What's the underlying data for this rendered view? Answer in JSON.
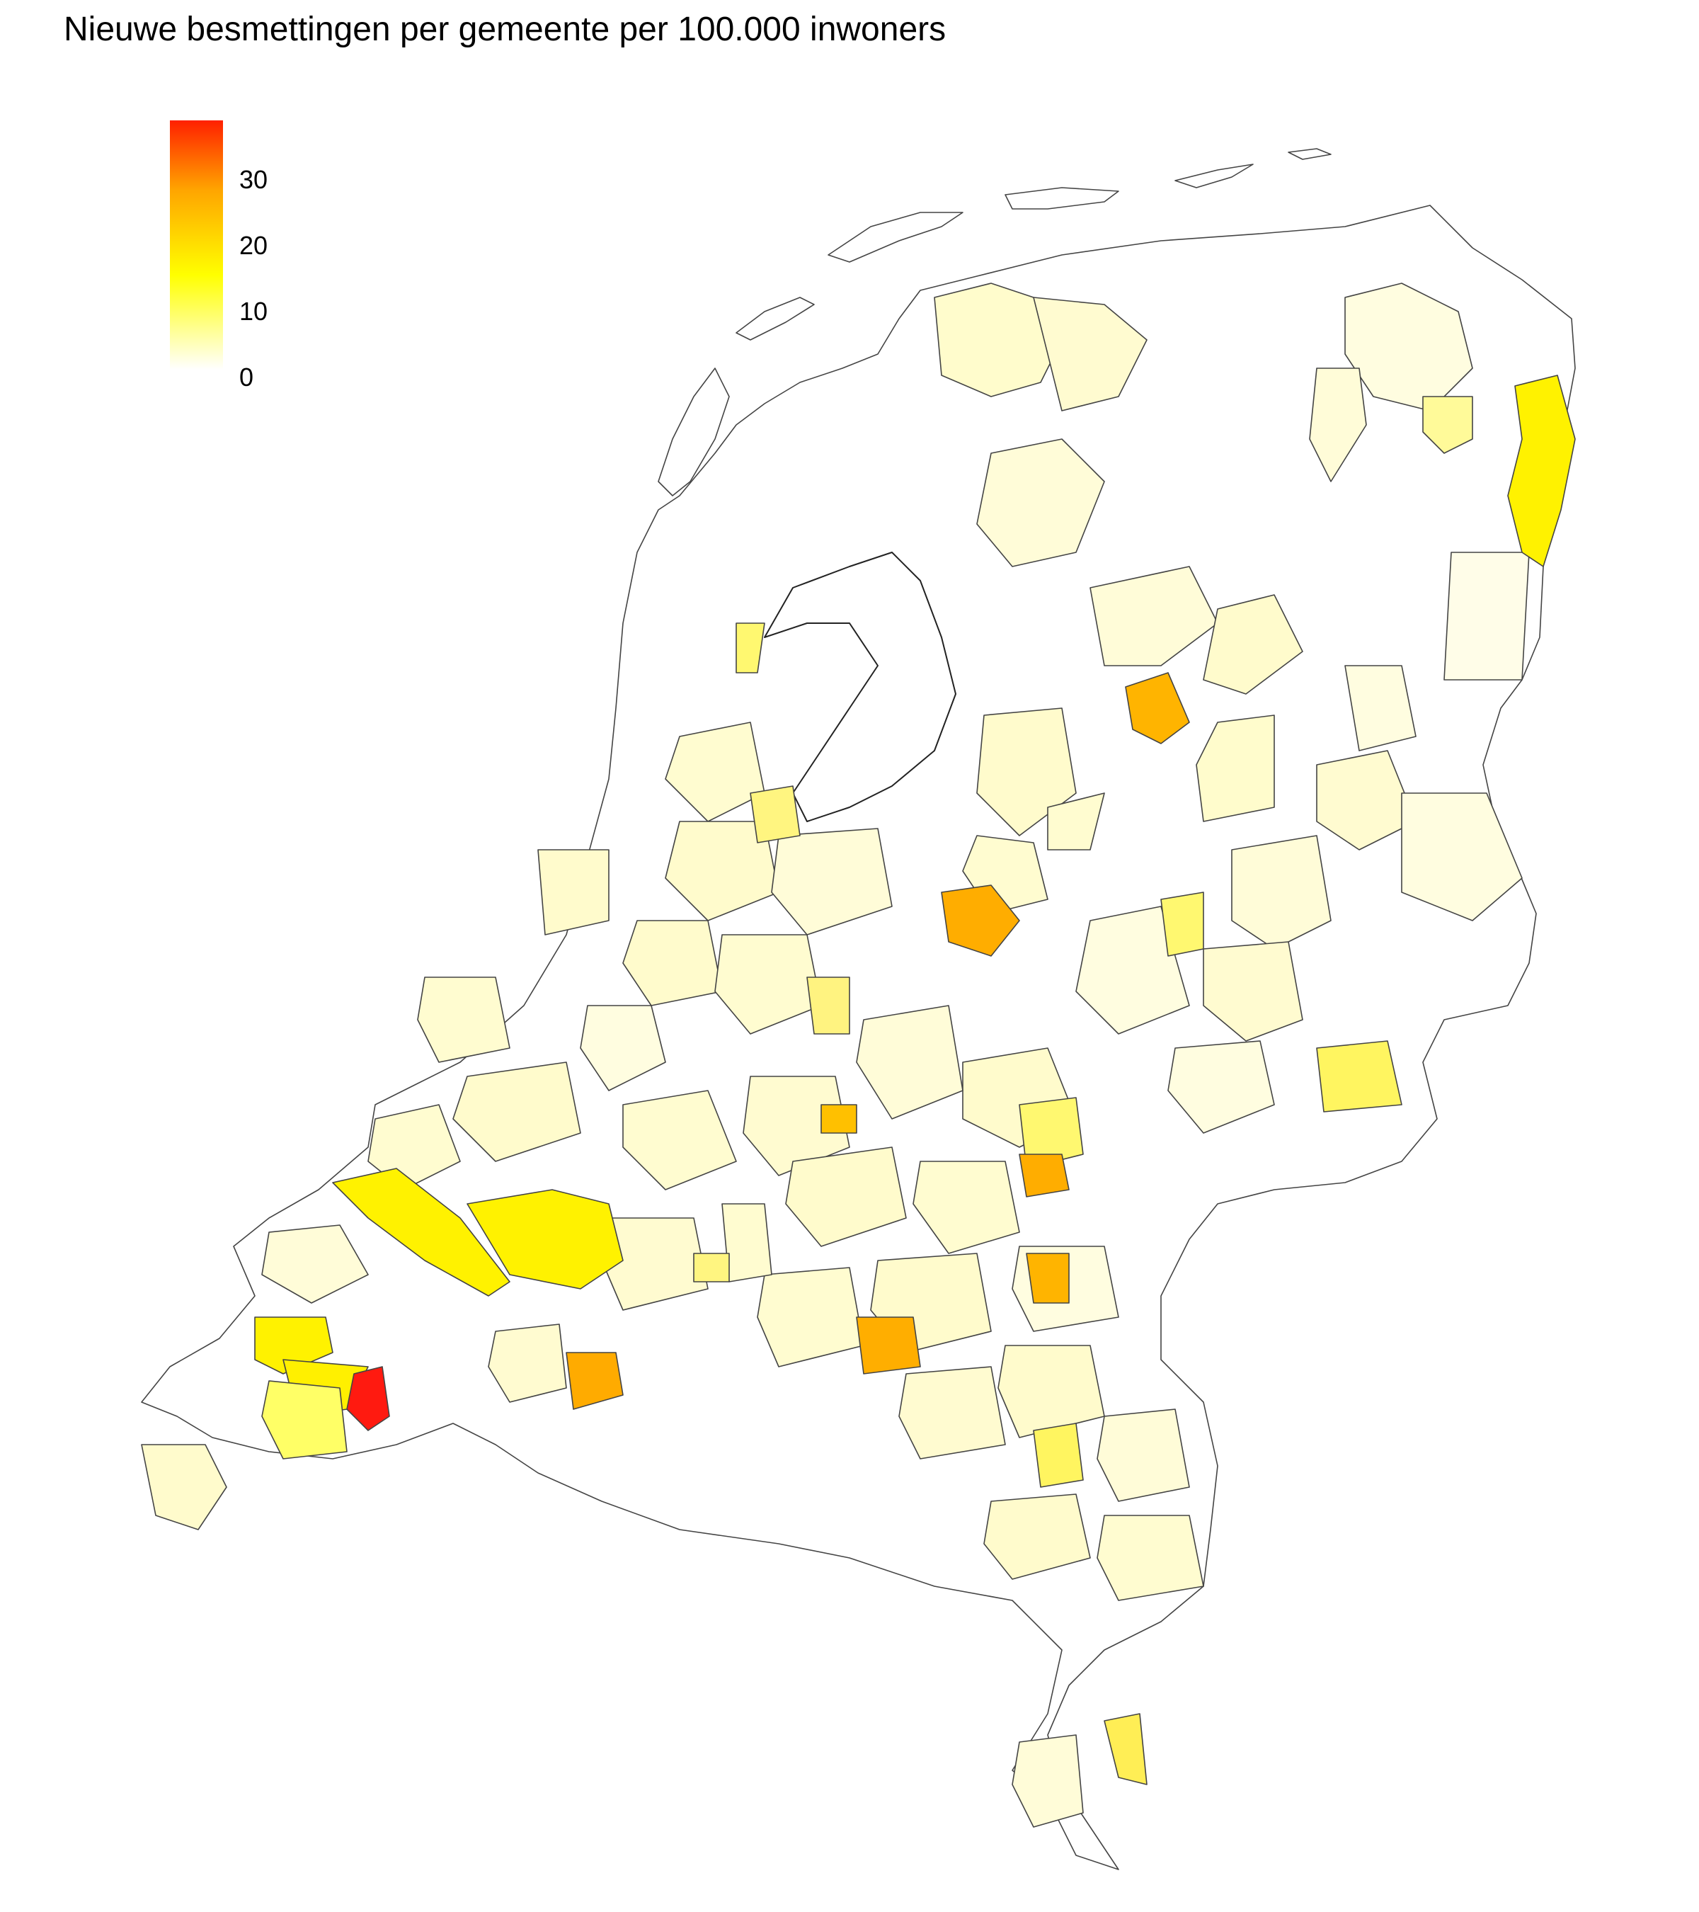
{
  "title": "Nieuwe besmettingen per gemeente per 100.000 inwoners",
  "legend": {
    "min": 0,
    "max": 38,
    "ticks": [
      {
        "value": 30,
        "label": "30"
      },
      {
        "value": 20,
        "label": "20"
      },
      {
        "value": 10,
        "label": "10"
      },
      {
        "value": 0,
        "label": "0"
      }
    ],
    "colors": {
      "zero": "#ffffff",
      "low": "#ffff00",
      "mid": "#ffa500",
      "high": "#ff2000"
    }
  },
  "map": {
    "outline_color": "#444444",
    "regions": [
      {
        "id": "zeeland-red",
        "value": 38
      },
      {
        "id": "drenthe-east-border",
        "value": 14
      },
      {
        "id": "groningen-east",
        "value": 9
      },
      {
        "id": "overijssel-north-orange",
        "value": 22
      },
      {
        "id": "gelderland-west-orange",
        "value": 23
      },
      {
        "id": "gelderland-south-orange",
        "value": 22
      },
      {
        "id": "utrecht-orange",
        "value": 17
      },
      {
        "id": "brabant-east-orange",
        "value": 22
      },
      {
        "id": "brabant-west-orange",
        "value": 24
      },
      {
        "id": "limburg-north-orange",
        "value": 18
      },
      {
        "id": "zuid-holland-islands-yellow",
        "value": 12
      },
      {
        "id": "zeeland-yellow",
        "value": 12
      },
      {
        "id": "limburg-south-yellow",
        "value": 8
      },
      {
        "id": "noord-holland-yellow",
        "value": 6
      }
    ]
  }
}
